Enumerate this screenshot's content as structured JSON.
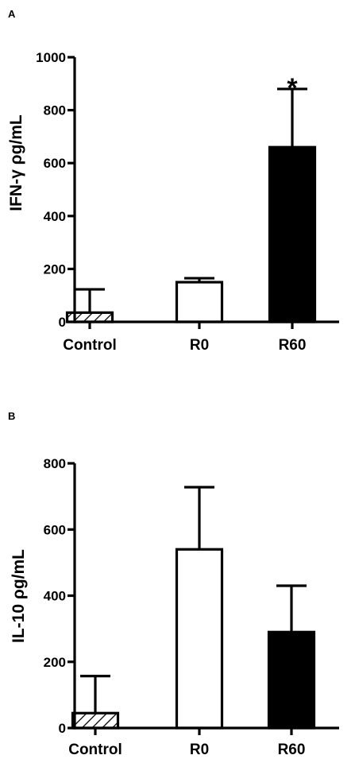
{
  "chart_data": [
    {
      "type": "bar",
      "panel": "A",
      "categories": [
        "Control",
        "R0",
        "R60"
      ],
      "values": [
        35,
        150,
        660
      ],
      "errors": [
        88,
        15,
        220
      ],
      "fills": [
        "hatched",
        "#ffffff",
        "#000000"
      ],
      "ylabel": "IFN-γ ρg/mL",
      "ylim": [
        0,
        1000
      ],
      "yticks": [
        "0",
        "200",
        "400",
        "600",
        "800",
        "1000"
      ],
      "annotations": [
        {
          "category": "R60",
          "text": "*"
        }
      ],
      "grid": false,
      "legend": "none"
    },
    {
      "type": "bar",
      "panel": "B",
      "categories": [
        "Control",
        "R0",
        "R60"
      ],
      "values": [
        45,
        540,
        290
      ],
      "errors": [
        112,
        188,
        140
      ],
      "fills": [
        "hatched",
        "#ffffff",
        "#000000"
      ],
      "ylabel": "IL-10 ρg/mL",
      "ylim": [
        0,
        800
      ],
      "yticks": [
        "0",
        "200",
        "400",
        "600",
        "800"
      ],
      "annotations": [],
      "grid": false,
      "legend": "none"
    }
  ]
}
